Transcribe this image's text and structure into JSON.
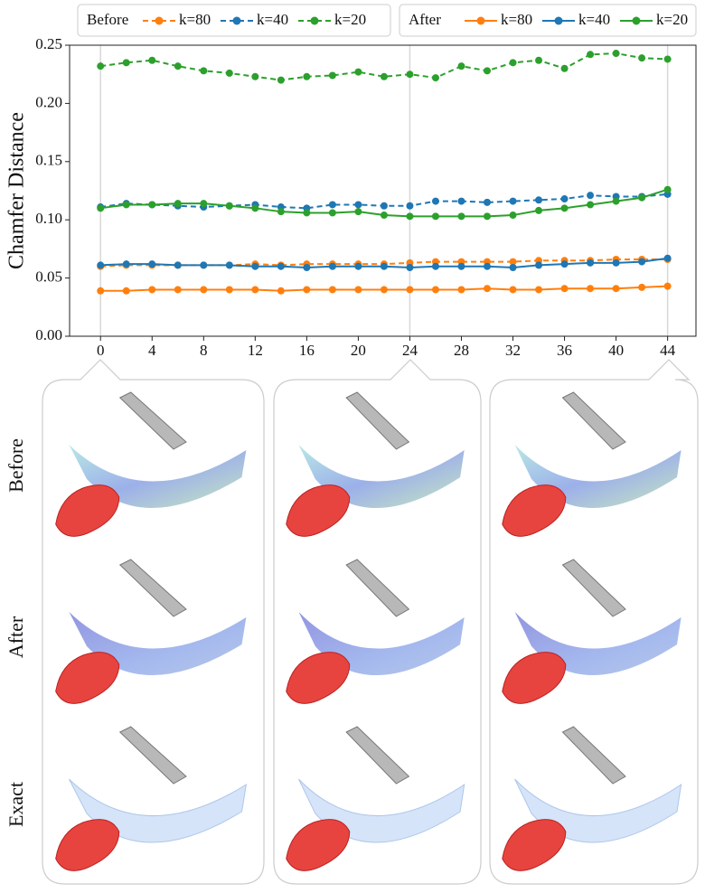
{
  "chart_data": {
    "type": "line",
    "y_label": "Chamfer Distance",
    "legend_titles": [
      "Before",
      "After"
    ],
    "x": [
      0,
      2,
      4,
      6,
      8,
      10,
      12,
      14,
      16,
      18,
      20,
      22,
      24,
      26,
      28,
      30,
      32,
      34,
      36,
      38,
      40,
      42,
      44
    ],
    "series": [
      {
        "name": "k=80",
        "color": "#ff7f0e",
        "style": "dashed",
        "values": [
          0.06,
          0.061,
          0.061,
          0.061,
          0.061,
          0.061,
          0.062,
          0.061,
          0.062,
          0.062,
          0.062,
          0.062,
          0.063,
          0.064,
          0.064,
          0.064,
          0.064,
          0.065,
          0.065,
          0.065,
          0.066,
          0.066,
          0.066
        ]
      },
      {
        "name": "k=40",
        "color": "#1f77b4",
        "style": "dashed",
        "values": [
          0.111,
          0.114,
          0.113,
          0.112,
          0.111,
          0.112,
          0.113,
          0.111,
          0.11,
          0.113,
          0.113,
          0.112,
          0.112,
          0.116,
          0.116,
          0.115,
          0.116,
          0.117,
          0.118,
          0.121,
          0.12,
          0.12,
          0.122
        ]
      },
      {
        "name": "k=20",
        "color": "#2ca02c",
        "style": "dashed",
        "values": [
          0.232,
          0.235,
          0.237,
          0.232,
          0.228,
          0.226,
          0.223,
          0.22,
          0.223,
          0.224,
          0.227,
          0.223,
          0.225,
          0.222,
          0.232,
          0.228,
          0.235,
          0.237,
          0.23,
          0.242,
          0.243,
          0.239,
          0.238
        ]
      },
      {
        "name": "k=80",
        "color": "#ff7f0e",
        "style": "solid",
        "values": [
          0.039,
          0.039,
          0.04,
          0.04,
          0.04,
          0.04,
          0.04,
          0.039,
          0.04,
          0.04,
          0.04,
          0.04,
          0.04,
          0.04,
          0.04,
          0.041,
          0.04,
          0.04,
          0.041,
          0.041,
          0.041,
          0.042,
          0.043
        ]
      },
      {
        "name": "k=40",
        "color": "#1f77b4",
        "style": "solid",
        "values": [
          0.061,
          0.062,
          0.062,
          0.061,
          0.061,
          0.061,
          0.06,
          0.06,
          0.059,
          0.06,
          0.06,
          0.06,
          0.059,
          0.06,
          0.06,
          0.06,
          0.059,
          0.061,
          0.062,
          0.063,
          0.063,
          0.064,
          0.067
        ]
      },
      {
        "name": "k=20",
        "color": "#2ca02c",
        "style": "solid",
        "values": [
          0.11,
          0.113,
          0.113,
          0.114,
          0.114,
          0.112,
          0.11,
          0.107,
          0.106,
          0.106,
          0.107,
          0.104,
          0.103,
          0.103,
          0.103,
          0.103,
          0.104,
          0.108,
          0.11,
          0.113,
          0.116,
          0.119,
          0.126
        ]
      }
    ],
    "xlim": [
      -2.4,
      46.2
    ],
    "ylim": [
      0,
      0.25
    ],
    "xticks": [
      0,
      4,
      8,
      12,
      16,
      20,
      24,
      28,
      32,
      36,
      40,
      44
    ],
    "yticks": [
      {
        "value": 0,
        "label": "0.00"
      },
      {
        "value": 0.05,
        "label": "0.05"
      },
      {
        "value": 0.1,
        "label": "0.10"
      },
      {
        "value": 0.15,
        "label": "0.15"
      },
      {
        "value": 0.2,
        "label": "0.20"
      },
      {
        "value": 0.25,
        "label": "0.25"
      }
    ],
    "highlight_x": [
      0,
      24,
      44
    ]
  },
  "row_labels": [
    "Before",
    "After",
    "Exact"
  ]
}
